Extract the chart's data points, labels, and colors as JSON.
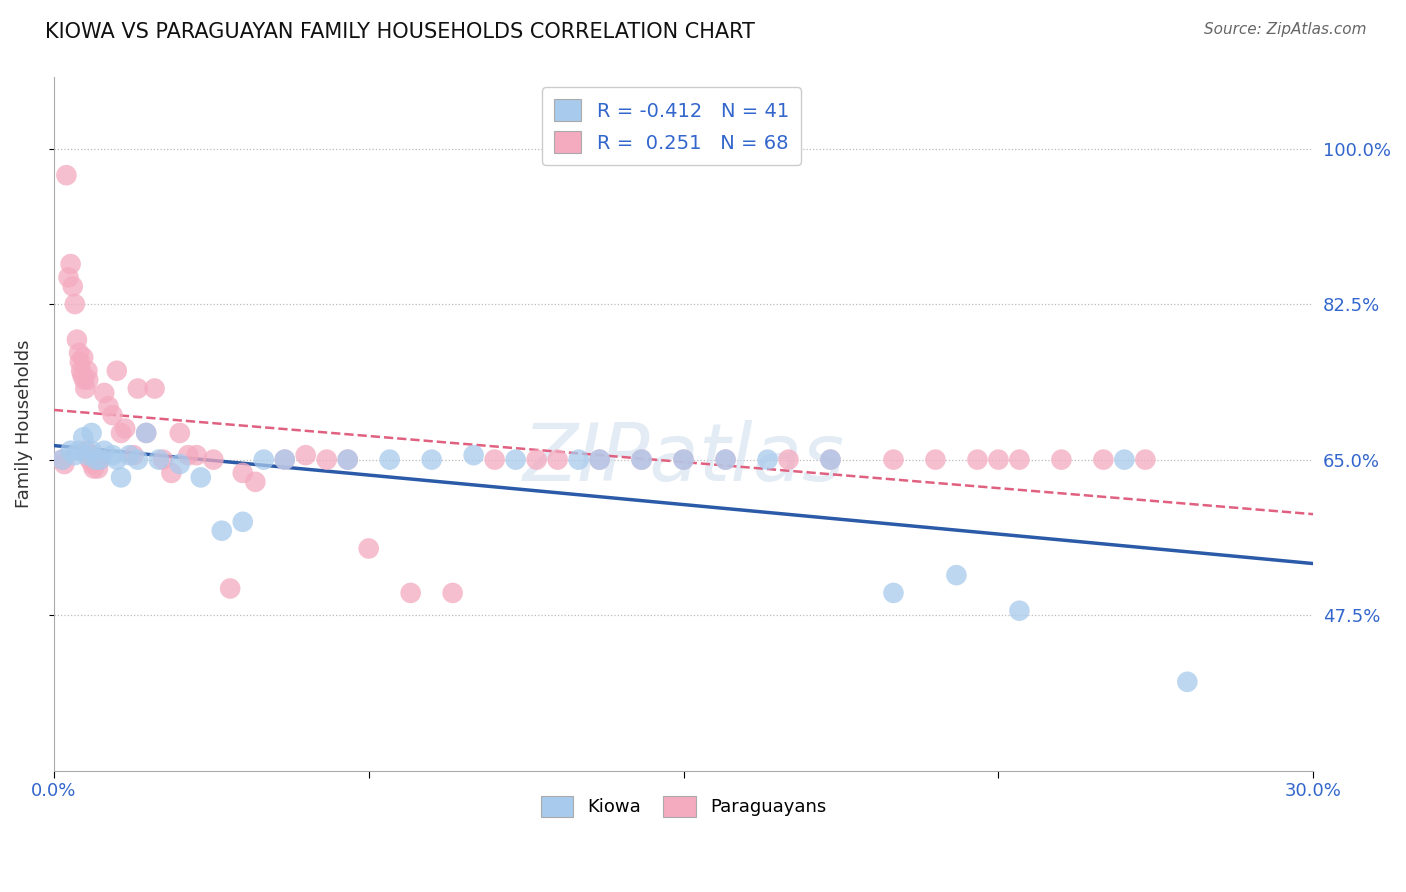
{
  "title": "KIOWA VS PARAGUAYAN FAMILY HOUSEHOLDS CORRELATION CHART",
  "source_text": "Source: ZipAtlas.com",
  "ylabel": "Family Households",
  "xlim": [
    0.0,
    30.0
  ],
  "ylim": [
    30.0,
    108.0
  ],
  "yticks": [
    47.5,
    65.0,
    82.5,
    100.0
  ],
  "xtick_positions": [
    0.0,
    7.5,
    15.0,
    22.5,
    30.0
  ],
  "xtick_labels": [
    "0.0%",
    "",
    "",
    "",
    "30.0%"
  ],
  "ytick_labels": [
    "47.5%",
    "65.0%",
    "82.5%",
    "100.0%"
  ],
  "kiowa_color": "#A8CAEC",
  "paraguayan_color": "#F4AABF",
  "kiowa_line_color": "#2B5BA8",
  "paraguayan_line_color": "#E06080",
  "watermark": "ZIPatlas",
  "legend_r_kiowa": "-0.412",
  "legend_n_kiowa": "41",
  "legend_r_paraguayan": "0.251",
  "legend_n_paraguayan": "68",
  "kiowa_x": [
    0.2,
    0.4,
    0.5,
    0.6,
    0.7,
    0.8,
    0.9,
    0.9,
    1.0,
    1.1,
    1.2,
    1.4,
    1.5,
    1.6,
    1.8,
    2.0,
    2.2,
    2.5,
    3.0,
    3.5,
    4.0,
    4.5,
    5.0,
    5.5,
    7.0,
    8.0,
    9.0,
    10.0,
    11.0,
    12.5,
    13.0,
    14.0,
    15.0,
    16.0,
    17.0,
    18.5,
    20.0,
    21.5,
    23.0,
    25.5,
    27.0
  ],
  "kiowa_y": [
    65.0,
    66.0,
    65.5,
    66.0,
    67.5,
    65.5,
    68.0,
    66.0,
    65.0,
    65.0,
    66.0,
    65.5,
    65.0,
    63.0,
    65.5,
    65.0,
    68.0,
    65.0,
    64.5,
    63.0,
    57.0,
    58.0,
    65.0,
    65.0,
    65.0,
    65.0,
    65.0,
    65.5,
    65.0,
    65.0,
    65.0,
    65.0,
    65.0,
    65.0,
    65.0,
    65.0,
    50.0,
    52.0,
    48.0,
    65.0,
    40.0
  ],
  "paraguayan_x": [
    0.2,
    0.25,
    0.3,
    0.35,
    0.4,
    0.45,
    0.5,
    0.55,
    0.6,
    0.62,
    0.65,
    0.68,
    0.7,
    0.72,
    0.75,
    0.78,
    0.8,
    0.82,
    0.85,
    0.9,
    0.92,
    0.95,
    1.0,
    1.05,
    1.1,
    1.2,
    1.3,
    1.4,
    1.5,
    1.6,
    1.7,
    1.9,
    2.0,
    2.2,
    2.4,
    2.6,
    2.8,
    3.0,
    3.2,
    3.4,
    3.8,
    4.2,
    4.5,
    4.8,
    5.5,
    6.0,
    6.5,
    7.0,
    7.5,
    8.5,
    9.5,
    10.5,
    11.5,
    12.0,
    13.0,
    14.0,
    15.0,
    16.0,
    17.5,
    18.5,
    20.0,
    21.0,
    22.0,
    22.5,
    23.0,
    24.0,
    25.0,
    26.0
  ],
  "paraguayan_y": [
    65.0,
    64.5,
    97.0,
    85.5,
    87.0,
    84.5,
    82.5,
    78.5,
    77.0,
    76.0,
    75.0,
    74.5,
    76.5,
    74.0,
    73.0,
    66.0,
    75.0,
    74.0,
    65.0,
    65.5,
    64.5,
    64.0,
    65.0,
    64.0,
    65.0,
    72.5,
    71.0,
    70.0,
    75.0,
    68.0,
    68.5,
    65.5,
    73.0,
    68.0,
    73.0,
    65.0,
    63.5,
    68.0,
    65.5,
    65.5,
    65.0,
    50.5,
    63.5,
    62.5,
    65.0,
    65.5,
    65.0,
    65.0,
    55.0,
    50.0,
    50.0,
    65.0,
    65.0,
    65.0,
    65.0,
    65.0,
    65.0,
    65.0,
    65.0,
    65.0,
    65.0,
    65.0,
    65.0,
    65.0,
    65.0,
    65.0,
    65.0,
    65.0
  ]
}
